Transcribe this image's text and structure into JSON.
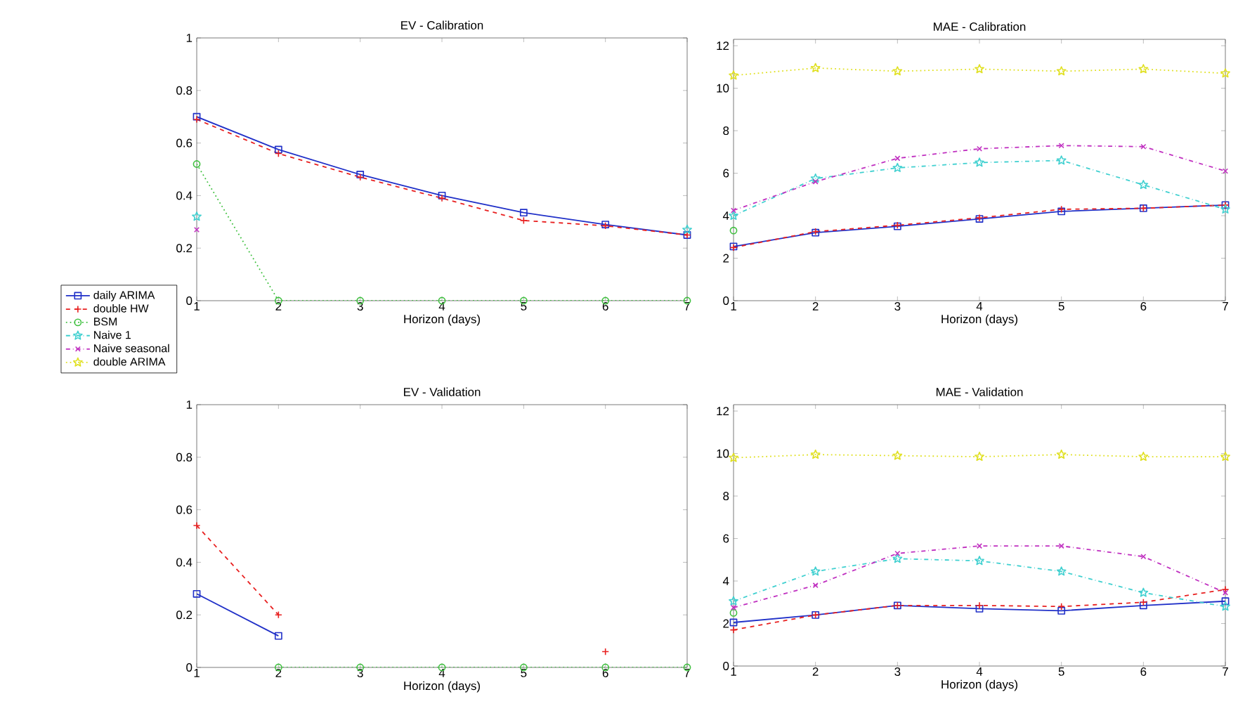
{
  "chart_data": [
    {
      "type": "line",
      "title": "EV - Calibration",
      "xlabel": "Horizon (days)",
      "x": [
        1,
        2,
        3,
        4,
        5,
        6,
        7
      ],
      "xlim": [
        1,
        7
      ],
      "xticks": [
        1,
        2,
        3,
        4,
        5,
        6,
        7
      ],
      "ylim": [
        0,
        1
      ],
      "yticks": [
        0,
        0.2,
        0.4,
        0.6,
        0.8,
        1
      ],
      "grid": false,
      "legend": "left",
      "series": [
        {
          "name": "daily ARIMA",
          "color": "#2030c8",
          "marker": "square",
          "line_style": "solid",
          "values": [
            0.7,
            0.575,
            0.48,
            0.4,
            0.335,
            0.29,
            0.25
          ]
        },
        {
          "name": "double HW",
          "color": "#e82020",
          "marker": "plus",
          "line_style": "dashed",
          "values": [
            0.69,
            0.56,
            0.47,
            0.39,
            0.305,
            0.285,
            0.25
          ]
        },
        {
          "name": "BSM",
          "color": "#40c040",
          "marker": "circle",
          "line_style": "dotted",
          "values": [
            0.52,
            0,
            0,
            0,
            0,
            0,
            0
          ]
        },
        {
          "name": "Naive 1",
          "color": "#40d0d0",
          "marker": "star",
          "line_style": "dashdot",
          "values": [
            0.32,
            null,
            null,
            null,
            null,
            null,
            0.27
          ]
        },
        {
          "name": "Naive seasonal",
          "color": "#c030c0",
          "marker": "cross",
          "line_style": "dashdot",
          "values": [
            0.27,
            null,
            null,
            null,
            null,
            null,
            null
          ]
        },
        {
          "name": "double ARIMA",
          "color": "#e0e020",
          "marker": "star",
          "line_style": "dotted",
          "values": [
            null,
            null,
            null,
            null,
            null,
            null,
            null
          ]
        }
      ]
    },
    {
      "type": "line",
      "title": "MAE - Calibration",
      "xlabel": "Horizon (days)",
      "x": [
        1,
        2,
        3,
        4,
        5,
        6,
        7
      ],
      "xlim": [
        1,
        7
      ],
      "xticks": [
        1,
        2,
        3,
        4,
        5,
        6,
        7
      ],
      "ylim": [
        0,
        12.3
      ],
      "yticks": [
        0,
        2,
        4,
        6,
        8,
        10,
        12
      ],
      "grid": false,
      "series": [
        {
          "color": "#2030c8",
          "marker": "square",
          "line_style": "solid",
          "values": [
            2.55,
            3.2,
            3.5,
            3.85,
            4.2,
            4.35,
            4.5
          ]
        },
        {
          "color": "#e82020",
          "marker": "plus",
          "line_style": "dashed",
          "values": [
            2.5,
            3.25,
            3.55,
            3.9,
            4.3,
            4.35,
            4.5
          ]
        },
        {
          "color": "#40c040",
          "marker": "circle",
          "line_style": "dotted",
          "values": [
            3.3,
            null,
            null,
            null,
            null,
            null,
            null
          ]
        },
        {
          "color": "#40d0d0",
          "marker": "star",
          "line_style": "dashdot",
          "values": [
            4.0,
            5.75,
            6.25,
            6.5,
            6.6,
            5.45,
            4.3
          ]
        },
        {
          "color": "#c030c0",
          "marker": "cross",
          "line_style": "dashdot",
          "values": [
            4.25,
            5.6,
            6.7,
            7.15,
            7.3,
            7.25,
            6.1
          ]
        },
        {
          "color": "#e0e020",
          "marker": "star",
          "line_style": "dotted",
          "values": [
            10.6,
            10.95,
            10.8,
            10.9,
            10.8,
            10.9,
            10.7
          ]
        }
      ]
    },
    {
      "type": "line",
      "title": "EV - Validation",
      "xlabel": "Horizon (days)",
      "x": [
        1,
        2,
        3,
        4,
        5,
        6,
        7
      ],
      "xlim": [
        1,
        7
      ],
      "xticks": [
        1,
        2,
        3,
        4,
        5,
        6,
        7
      ],
      "ylim": [
        0,
        1
      ],
      "yticks": [
        0,
        0.2,
        0.4,
        0.6,
        0.8,
        1
      ],
      "grid": false,
      "series": [
        {
          "color": "#2030c8",
          "marker": "square",
          "line_style": "solid",
          "values": [
            0.28,
            0.12,
            null,
            null,
            null,
            null,
            null
          ]
        },
        {
          "color": "#e82020",
          "marker": "plus",
          "line_style": "dashed",
          "values": [
            0.54,
            0.2,
            null,
            null,
            null,
            0.06,
            null
          ]
        },
        {
          "color": "#40c040",
          "marker": "circle",
          "line_style": "dotted",
          "values": [
            null,
            0,
            0,
            0,
            0,
            0,
            0
          ]
        }
      ]
    },
    {
      "type": "line",
      "title": "MAE - Validation",
      "xlabel": "Horizon (days)",
      "x": [
        1,
        2,
        3,
        4,
        5,
        6,
        7
      ],
      "xlim": [
        1,
        7
      ],
      "xticks": [
        1,
        2,
        3,
        4,
        5,
        6,
        7
      ],
      "ylim": [
        0,
        12.3
      ],
      "yticks": [
        0,
        2,
        4,
        6,
        8,
        10,
        12
      ],
      "grid": false,
      "series": [
        {
          "color": "#2030c8",
          "marker": "square",
          "line_style": "solid",
          "values": [
            2.05,
            2.4,
            2.85,
            2.7,
            2.6,
            2.85,
            3.05
          ]
        },
        {
          "color": "#e82020",
          "marker": "plus",
          "line_style": "dashed",
          "values": [
            1.7,
            2.4,
            2.85,
            2.85,
            2.8,
            3.0,
            3.6
          ]
        },
        {
          "color": "#40c040",
          "marker": "circle",
          "line_style": "dotted",
          "values": [
            2.5,
            null,
            null,
            null,
            null,
            null,
            null
          ]
        },
        {
          "color": "#40d0d0",
          "marker": "star",
          "line_style": "dashdot",
          "values": [
            3.05,
            4.45,
            5.05,
            4.95,
            4.45,
            3.45,
            2.8
          ]
        },
        {
          "color": "#c030c0",
          "marker": "cross",
          "line_style": "dashdot",
          "values": [
            2.75,
            3.8,
            5.3,
            5.65,
            5.65,
            5.15,
            3.45
          ]
        },
        {
          "color": "#e0e020",
          "marker": "star",
          "line_style": "dotted",
          "values": [
            9.8,
            9.95,
            9.9,
            9.85,
            9.95,
            9.85,
            9.85
          ]
        }
      ]
    }
  ]
}
